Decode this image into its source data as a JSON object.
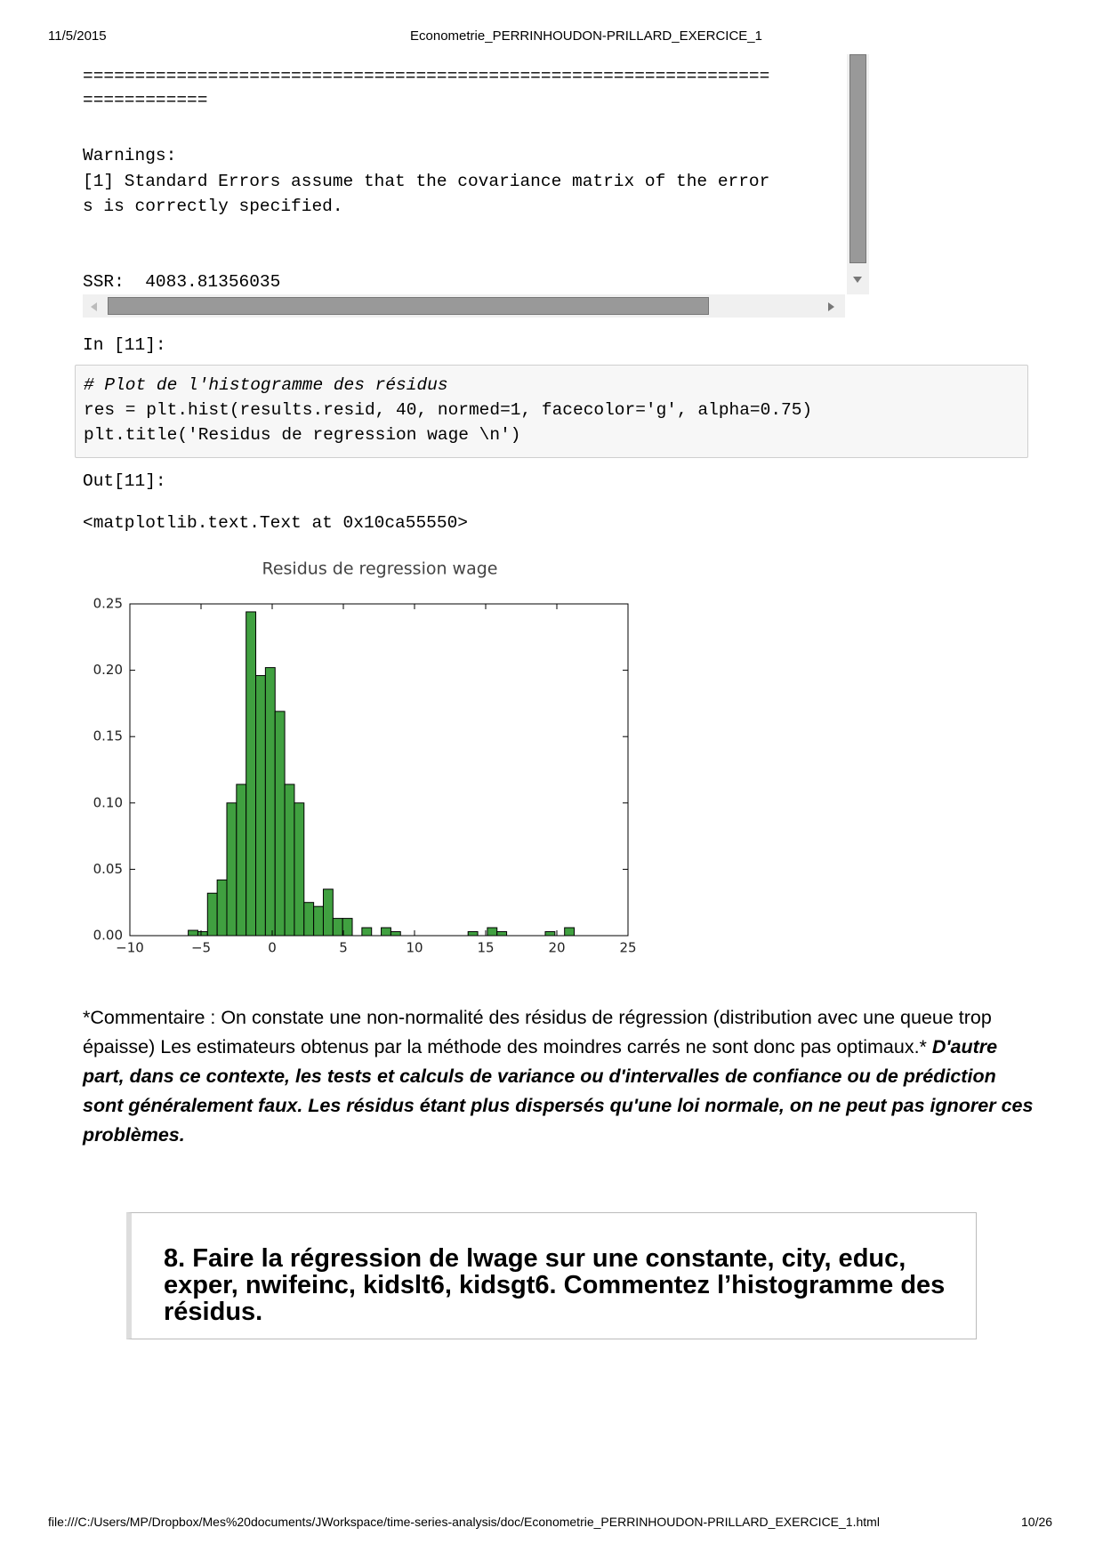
{
  "header": {
    "date": "11/5/2015",
    "title": "Econometrie_PERRINHOUDON-PRILLARD_EXERCICE_1"
  },
  "output": {
    "lines": [
      "==================================================================",
      "============",
      "Warnings:",
      "[1] Standard Errors assume that the covariance matrix of the error",
      "s is correctly specified.",
      "SSR:  4083.81356035"
    ]
  },
  "cell": {
    "prompt": "In [11]:",
    "code": [
      "# Plot de l'histogramme des résidus",
      "res = plt.hist(results.resid, 40, normed=1, facecolor='g', alpha=0.75)",
      "plt.title('Residus de regression wage \\n')"
    ]
  },
  "out": {
    "prompt": "Out[11]:",
    "text": "<matplotlib.text.Text at 0x10ca55550>"
  },
  "chart_data": {
    "type": "histogram",
    "title": "Residus de regression wage",
    "color": "#40a040",
    "bins": [
      -5.9,
      -5.222,
      -4.544,
      -3.866,
      -3.188,
      -2.51,
      -1.832,
      -1.154,
      -0.476,
      0.202,
      0.88,
      1.558,
      2.236,
      2.914,
      3.592,
      4.27,
      4.948,
      5.626,
      6.304,
      6.982,
      7.66,
      8.338,
      9.016,
      9.694,
      10.372,
      11.05,
      11.728,
      12.406,
      13.084,
      13.762,
      14.44,
      15.118,
      15.796,
      16.474,
      17.152,
      17.83,
      18.508,
      19.186,
      19.864,
      20.542,
      21.22
    ],
    "values": [
      0.004,
      0.003,
      0.032,
      0.042,
      0.1,
      0.114,
      0.244,
      0.196,
      0.202,
      0.169,
      0.114,
      0.1,
      0.025,
      0.022,
      0.035,
      0.013,
      0.013,
      0,
      0.006,
      0,
      0.006,
      0.003,
      0,
      0,
      0,
      0,
      0,
      0,
      0,
      0.003,
      0,
      0.006,
      0.003,
      0,
      0,
      0,
      0,
      0.003,
      0,
      0.006
    ],
    "xlim": [
      -10,
      25
    ],
    "ylim": [
      0,
      0.25
    ],
    "xticks": [
      {
        "value": -10,
        "label": "−10"
      },
      {
        "value": -5,
        "label": "−5"
      },
      0,
      5,
      10,
      15,
      20,
      25
    ],
    "yticks": [
      {
        "value": 0,
        "label": "0.00"
      },
      0.05,
      {
        "value": 0.1,
        "label": "0.10"
      },
      0.15,
      {
        "value": 0.2,
        "label": "0.20"
      },
      0.25
    ],
    "grid": false
  },
  "commentary": {
    "text": "*Commentaire : On constate une non-normalité des résidus de régression (distribution avec une queue trop épaisse) Les estimateurs obtenus par la méthode des moindres carrés ne sont donc pas optimaux.*",
    "emphasis": "D'autre part, dans ce contexte, les tests et calculs de variance ou d'intervalles de confiance ou de prédiction sont généralement faux. Les résidus étant plus dispersés qu'une loi normale, on ne peut pas ignorer ces problèmes."
  },
  "heading": "8. Faire la régression de lwage sur une constante, city, educ, exper, nwifeinc, kidslt6, kidsgt6. Commentez l’histogramme des résidus.",
  "footer": {
    "url": "file:///C:/Users/MP/Dropbox/Mes%20documents/JWorkspace/time-series-analysis/doc/Econometrie_PERRINHOUDON-PRILLARD_EXERCICE_1.html",
    "page": "10/26"
  }
}
